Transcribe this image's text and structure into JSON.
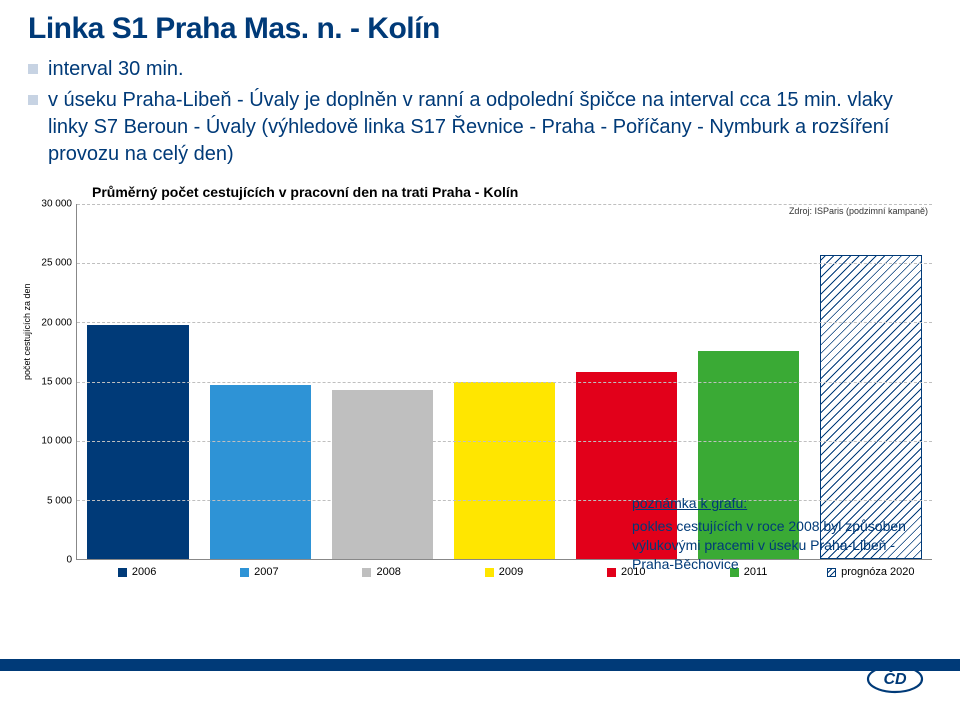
{
  "title": "Linka S1 Praha Mas. n. - Kolín",
  "bullets": [
    "interval 30 min.",
    "v úseku Praha-Libeň - Úvaly je doplněn v ranní a odpolední špičce na interval cca 15 min. vlaky linky S7 Beroun - Úvaly (výhledově linka S17 Řevnice - Praha - Poříčany - Nymburk a rozšíření provozu na celý den)"
  ],
  "note": {
    "heading": "poznámka k grafu:",
    "body": "pokles cestujících v roce 2008 byl způsoben výlukovými pracemi v úseku Praha-Libeň - Praha-Běchovice"
  },
  "chart": {
    "type": "bar",
    "title": "Průměrný počet cestujících v pracovní den na trati Praha - Kolín",
    "source": "Zdroj: ISParis (podzimní kampaně)",
    "ylabel": "počet cestujících za den",
    "ylim": [
      0,
      30000
    ],
    "ytick_step": 5000,
    "grid_color": "#bfbfbf",
    "background_color": "#ffffff",
    "categories": [
      "2006",
      "2007",
      "2008",
      "2009",
      "2010",
      "2011",
      "prognóza 2020"
    ],
    "values": [
      19800,
      14700,
      14300,
      15000,
      15800,
      17600,
      25700
    ],
    "bar_colors": [
      "#003a78",
      "#2e93d6",
      "#bfbfbf",
      "#ffe600",
      "#e2001a",
      "#3aaa35",
      "hatch"
    ],
    "label_fontsize": 11,
    "title_fontsize": 14
  }
}
